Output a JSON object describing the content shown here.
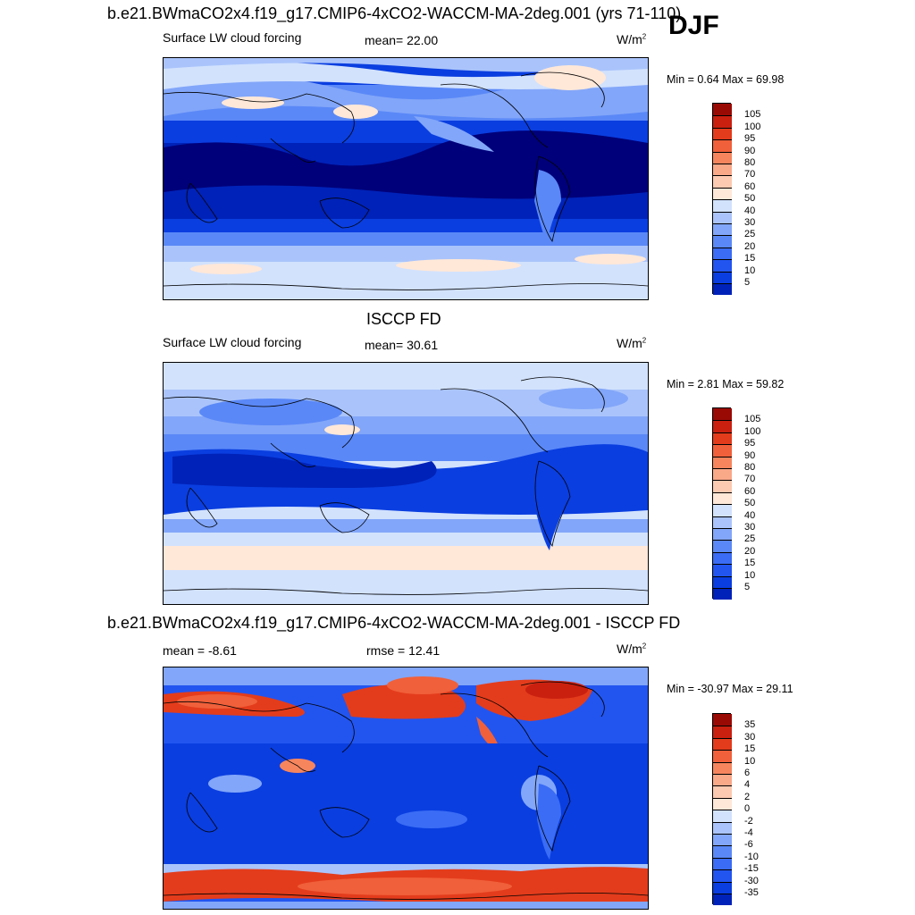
{
  "season": "DJF",
  "colors": {
    "cb1": [
      "#00007a",
      "#0022b8",
      "#0a3ee0",
      "#2255f0",
      "#3a6cf5",
      "#5a88f7",
      "#82a6f9",
      "#aac4fb",
      "#d2e2fd",
      "#ffe8d8",
      "#fccab0",
      "#f9a888",
      "#f6855e",
      "#f0603a",
      "#e33c1c",
      "#c92010",
      "#9a0a05"
    ],
    "cb3": [
      "#00007a",
      "#0022b8",
      "#0a3ee0",
      "#2255f0",
      "#3a6cf5",
      "#5a88f7",
      "#82a6f9",
      "#aac4fb",
      "#d2e2fd",
      "#ffe8d8",
      "#fccab0",
      "#f9a888",
      "#f6855e",
      "#f0603a",
      "#e33c1c",
      "#c92010",
      "#9a0a05"
    ]
  },
  "panels": [
    {
      "title": "b.e21.BWmaCO2x4.f19_g17.CMIP6-4xCO2-WACCM-MA-2deg.001 (yrs 71-110)",
      "left_label": "Surface LW cloud forcing",
      "center_label": "mean=  22.00",
      "units": "W/m",
      "units_sup": "2",
      "minmax": "Min =   0.64 Max =  69.98",
      "levels": [
        "105",
        "100",
        "95",
        "90",
        "80",
        "70",
        "60",
        "50",
        "40",
        "30",
        "25",
        "20",
        "15",
        "10",
        "5"
      ]
    },
    {
      "title": "ISCCP FD",
      "left_label": "Surface LW cloud forcing",
      "center_label": "mean=  30.61",
      "units": "W/m",
      "units_sup": "2",
      "minmax": "Min =   2.81 Max =  59.82",
      "levels": [
        "105",
        "100",
        "95",
        "90",
        "80",
        "70",
        "60",
        "50",
        "40",
        "30",
        "25",
        "20",
        "15",
        "10",
        "5"
      ]
    },
    {
      "title": "b.e21.BWmaCO2x4.f19_g17.CMIP6-4xCO2-WACCM-MA-2deg.001 - ISCCP FD",
      "left_label": "mean =  -8.61",
      "center_label": "rmse =  12.41",
      "units": "W/m",
      "units_sup": "2",
      "minmax": "Min = -30.97 Max =  29.11",
      "levels": [
        "35",
        "30",
        "15",
        "10",
        "6",
        "4",
        "2",
        "0",
        "-2",
        "-4",
        "-6",
        "-10",
        "-15",
        "-30",
        "-35"
      ]
    }
  ]
}
